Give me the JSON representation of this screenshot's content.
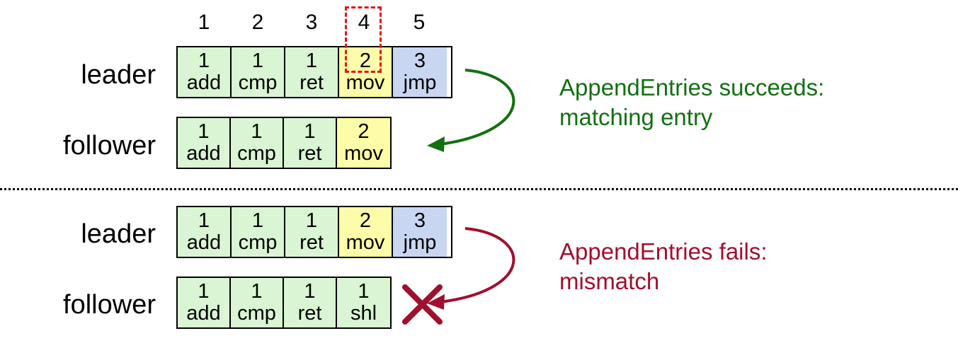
{
  "colors": {
    "term1": "#d9f5d3",
    "term2": "#fdfca8",
    "term3": "#c8d6f2",
    "success": "#127012",
    "failure": "#a0102e",
    "highlight": "#e01818"
  },
  "indices": [
    "1",
    "2",
    "3",
    "4",
    "5"
  ],
  "top": {
    "leader": {
      "label": "leader",
      "entries": [
        {
          "term": "1",
          "cmd": "add"
        },
        {
          "term": "1",
          "cmd": "cmp"
        },
        {
          "term": "1",
          "cmd": "ret"
        },
        {
          "term": "2",
          "cmd": "mov"
        },
        {
          "term": "3",
          "cmd": "jmp"
        }
      ]
    },
    "follower": {
      "label": "follower",
      "entries": [
        {
          "term": "1",
          "cmd": "add"
        },
        {
          "term": "1",
          "cmd": "cmp"
        },
        {
          "term": "1",
          "cmd": "ret"
        },
        {
          "term": "2",
          "cmd": "mov"
        }
      ]
    },
    "message": {
      "line1": "AppendEntries succeeds:",
      "line2": "matching entry"
    }
  },
  "bottom": {
    "leader": {
      "label": "leader",
      "entries": [
        {
          "term": "1",
          "cmd": "add"
        },
        {
          "term": "1",
          "cmd": "cmp"
        },
        {
          "term": "1",
          "cmd": "ret"
        },
        {
          "term": "2",
          "cmd": "mov"
        },
        {
          "term": "3",
          "cmd": "jmp"
        }
      ]
    },
    "follower": {
      "label": "follower",
      "entries": [
        {
          "term": "1",
          "cmd": "add"
        },
        {
          "term": "1",
          "cmd": "cmp"
        },
        {
          "term": "1",
          "cmd": "ret"
        },
        {
          "term": "1",
          "cmd": "shl"
        }
      ]
    },
    "message": {
      "line1": "AppendEntries fails:",
      "line2": "mismatch"
    }
  },
  "icons": {
    "success_arrow": "curved-arrow-icon",
    "failure_arrow": "curved-arrow-icon",
    "reject": "x-mark-icon"
  }
}
